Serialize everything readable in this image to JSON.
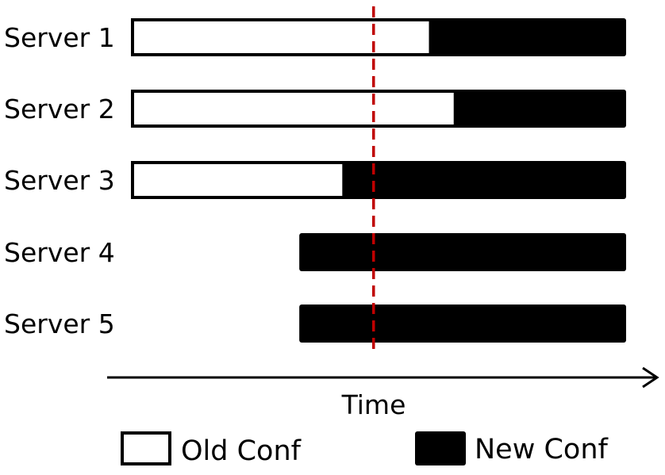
{
  "diagram": {
    "servers": [
      {
        "label": "Server 1",
        "has_old": true,
        "switch_fraction": 0.605
      },
      {
        "label": "Server 2",
        "has_old": true,
        "switch_fraction": 0.655
      },
      {
        "label": "Server 3",
        "has_old": true,
        "switch_fraction": 0.43
      },
      {
        "label": "Server 4",
        "has_old": false,
        "start_fraction": 0.34
      },
      {
        "label": "Server 5",
        "has_old": false,
        "start_fraction": 0.34
      }
    ],
    "time_axis": {
      "label": "Time"
    },
    "marker": {
      "color": "#c00000",
      "style": "dashed",
      "time_fraction": 0.49
    },
    "legend": {
      "old": {
        "label": "Old Conf",
        "fill": "#ffffff"
      },
      "new": {
        "label": "New Conf",
        "fill": "#000000"
      }
    }
  }
}
